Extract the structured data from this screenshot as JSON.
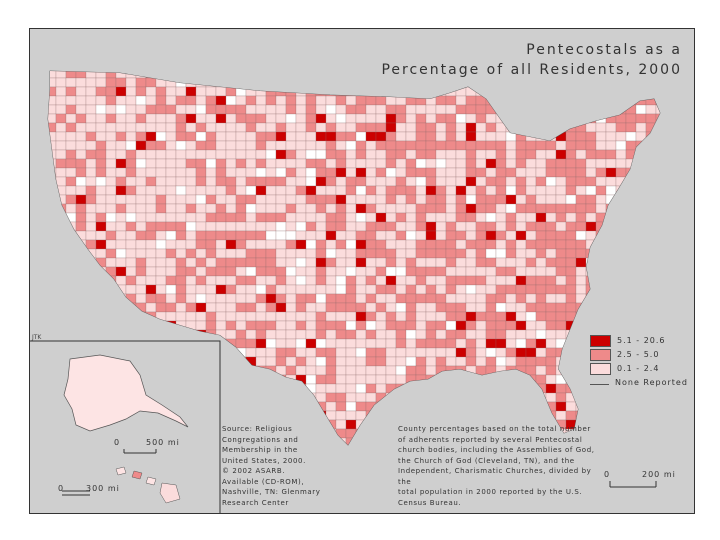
{
  "title": {
    "line1": "Pentecostals as a",
    "line2": "Percentage of all Residents, 2000"
  },
  "legend": {
    "items": [
      {
        "label": "5.1 - 20.6",
        "color": "#cc0000"
      },
      {
        "label": "2.5 - 5.0",
        "color": "#ee8a8a"
      },
      {
        "label": "0.1 - 2.4",
        "color": "#fbdcdc"
      },
      {
        "label": "None Reported",
        "color": "none"
      }
    ]
  },
  "author_mark": "JTK",
  "source": [
    "Source: Religious",
    "Congregations and",
    "Membership in the",
    "United States, 2000.",
    "© 2002 ASARB.",
    "Available (CD-ROM),",
    "Nashville, TN: Glenmary",
    "Research Center"
  ],
  "note": [
    "County percentages based on the total number",
    "of adherents reported by several Pentecostal",
    "church bodies, including the Assemblies of God,",
    "the Church of God (Cleveland, TN), and the",
    "Independent, Charismatic Churches, divided by the",
    "total population in 2000 reported by the U.S.",
    "Census Bureau."
  ],
  "scales": {
    "alaska_zero": "0",
    "alaska_dist": "500 mi",
    "hawaii_zero": "0",
    "hawaii_dist": "300 mi",
    "conus_zero": "0",
    "conus_dist": "200 mi"
  },
  "colors": {
    "dark": "#cc0000",
    "medium": "#ee8a8a",
    "light": "#fbdcdc",
    "water": "#c9c9c9",
    "land": "#fde4e4"
  }
}
